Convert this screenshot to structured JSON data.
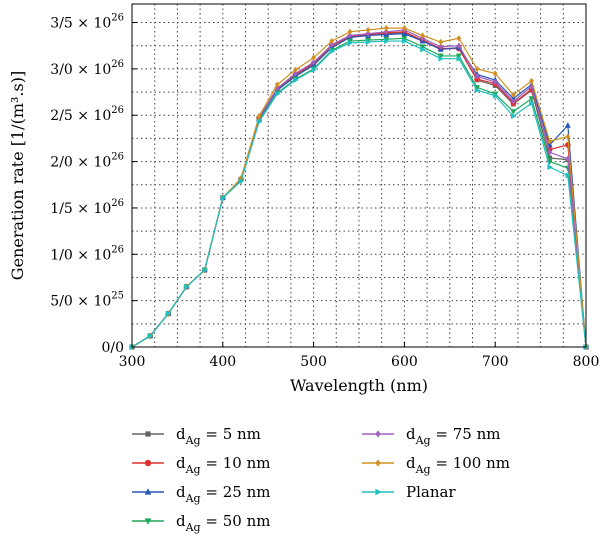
{
  "chart_data": {
    "type": "line",
    "xlabel": "Wavelength (nm)",
    "ylabel": "Generation rate [1/(m³.s)]",
    "xlim": [
      300,
      800
    ],
    "ylim": [
      0,
      3.7e+26
    ],
    "grid": true,
    "legend_placement": "bottom",
    "x_ticks": [
      300,
      400,
      500,
      600,
      700,
      800
    ],
    "x_tick_labels": [
      "300",
      "400",
      "500",
      "600",
      "700",
      "800"
    ],
    "y_ticks": [
      0,
      5e+25,
      1e+26,
      1.5e+26,
      2e+26,
      2.5e+26,
      3e+26,
      3.5e+26
    ],
    "y_tick_labels": [
      {
        "mant": "0/0",
        "exp": ""
      },
      {
        "mant": "5/0 × 10",
        "exp": "25"
      },
      {
        "mant": "1/0 × 10",
        "exp": "26"
      },
      {
        "mant": "1/5 × 10",
        "exp": "26"
      },
      {
        "mant": "2/0 × 10",
        "exp": "26"
      },
      {
        "mant": "2/5 × 10",
        "exp": "26"
      },
      {
        "mant": "3/0 × 10",
        "exp": "26"
      },
      {
        "mant": "3/5 × 10",
        "exp": "26"
      }
    ],
    "x": [
      300,
      320,
      340,
      360,
      380,
      400,
      420,
      440,
      460,
      480,
      500,
      520,
      540,
      560,
      580,
      600,
      620,
      640,
      660,
      680,
      700,
      720,
      740,
      760,
      780,
      800
    ],
    "series": [
      {
        "name_main": "d",
        "name_sub": "Ag",
        "name_tail": " = 5 nm",
        "color": "#666666",
        "marker": "square",
        "values": [
          0,
          1.2e+25,
          3.6e+25,
          6.5e+25,
          8.3e+25,
          1.61e+26,
          1.81e+26,
          2.47e+26,
          2.78e+26,
          2.93e+26,
          3.05e+26,
          3.23e+26,
          3.34e+26,
          3.36e+26,
          3.38e+26,
          3.39e+26,
          3.31e+26,
          3.22e+26,
          3.22e+26,
          2.88e+26,
          2.82e+26,
          2.62e+26,
          2.77e+26,
          2.04e+26,
          2.02e+26,
          0
        ]
      },
      {
        "name_main": "d",
        "name_sub": "Ag",
        "name_tail": " = 10 nm",
        "color": "#e03030",
        "marker": "circle",
        "values": [
          0,
          1.2e+25,
          3.6e+25,
          6.5e+25,
          8.3e+25,
          1.61e+26,
          1.81e+26,
          2.47e+26,
          2.79e+26,
          2.94e+26,
          3.06e+26,
          3.25e+26,
          3.35e+26,
          3.37e+26,
          3.39e+26,
          3.4e+26,
          3.31e+26,
          3.22e+26,
          3.22e+26,
          2.89e+26,
          2.84e+26,
          2.63e+26,
          2.78e+26,
          2.13e+26,
          2.18e+26,
          0
        ]
      },
      {
        "name_main": "d",
        "name_sub": "Ag",
        "name_tail": " = 25 nm",
        "color": "#2a56b8",
        "marker": "triangle",
        "values": [
          0,
          1.2e+25,
          3.6e+25,
          6.5e+25,
          8.3e+25,
          1.61e+26,
          1.81e+26,
          2.46e+26,
          2.77e+26,
          2.92e+26,
          3.04e+26,
          3.23e+26,
          3.34e+26,
          3.36e+26,
          3.37e+26,
          3.38e+26,
          3.3e+26,
          3.21e+26,
          3.23e+26,
          2.94e+26,
          2.88e+26,
          2.68e+26,
          2.83e+26,
          2.18e+26,
          2.39e+26,
          0
        ]
      },
      {
        "name_main": "d",
        "name_sub": "Ag",
        "name_tail": " = 50 nm",
        "color": "#1fa85a",
        "marker": "triangle-down",
        "values": [
          0,
          1.2e+25,
          3.6e+25,
          6.5e+25,
          8.3e+25,
          1.61e+26,
          1.79e+26,
          2.44e+26,
          2.74e+26,
          2.89e+26,
          3e+26,
          3.2e+26,
          3.3e+26,
          3.31e+26,
          3.32e+26,
          3.33e+26,
          3.24e+26,
          3.14e+26,
          3.14e+26,
          2.8e+26,
          2.73e+26,
          2.54e+26,
          2.68e+26,
          2e+26,
          1.93e+26,
          0
        ]
      },
      {
        "name_main": "d",
        "name_sub": "Ag",
        "name_tail": " = 75 nm",
        "color": "#a060c0",
        "marker": "diamond",
        "values": [
          0,
          1.2e+25,
          3.6e+25,
          6.5e+25,
          8.3e+25,
          1.61e+26,
          1.81e+26,
          2.47e+26,
          2.79e+26,
          2.95e+26,
          3.07e+26,
          3.26e+26,
          3.36e+26,
          3.38e+26,
          3.4e+26,
          3.42e+26,
          3.33e+26,
          3.24e+26,
          3.25e+26,
          2.92e+26,
          2.86e+26,
          2.65e+26,
          2.81e+26,
          2.1e+26,
          2.03e+26,
          0
        ]
      },
      {
        "name_main": "d",
        "name_sub": "Ag",
        "name_tail": " = 100 nm",
        "color": "#d09020",
        "marker": "diamond",
        "values": [
          0,
          1.2e+25,
          3.6e+25,
          6.5e+25,
          8.3e+25,
          1.61e+26,
          1.82e+26,
          2.49e+26,
          2.83e+26,
          2.99e+26,
          3.12e+26,
          3.3e+26,
          3.4e+26,
          3.42e+26,
          3.44e+26,
          3.44e+26,
          3.36e+26,
          3.29e+26,
          3.33e+26,
          3e+26,
          2.95e+26,
          2.72e+26,
          2.87e+26,
          2.22e+26,
          2.27e+26,
          0
        ]
      },
      {
        "name_main": "Planar",
        "name_sub": "",
        "name_tail": "",
        "color": "#20c0c0",
        "marker": "triangle-right",
        "values": [
          0,
          1.2e+25,
          3.6e+25,
          6.5e+25,
          8.3e+25,
          1.61e+26,
          1.79e+26,
          2.43e+26,
          2.73e+26,
          2.88e+26,
          2.99e+26,
          3.19e+26,
          3.28e+26,
          3.29e+26,
          3.3e+26,
          3.3e+26,
          3.21e+26,
          3.11e+26,
          3.11e+26,
          2.77e+26,
          2.71e+26,
          2.49e+26,
          2.63e+26,
          1.94e+26,
          1.85e+26,
          0
        ]
      }
    ]
  }
}
